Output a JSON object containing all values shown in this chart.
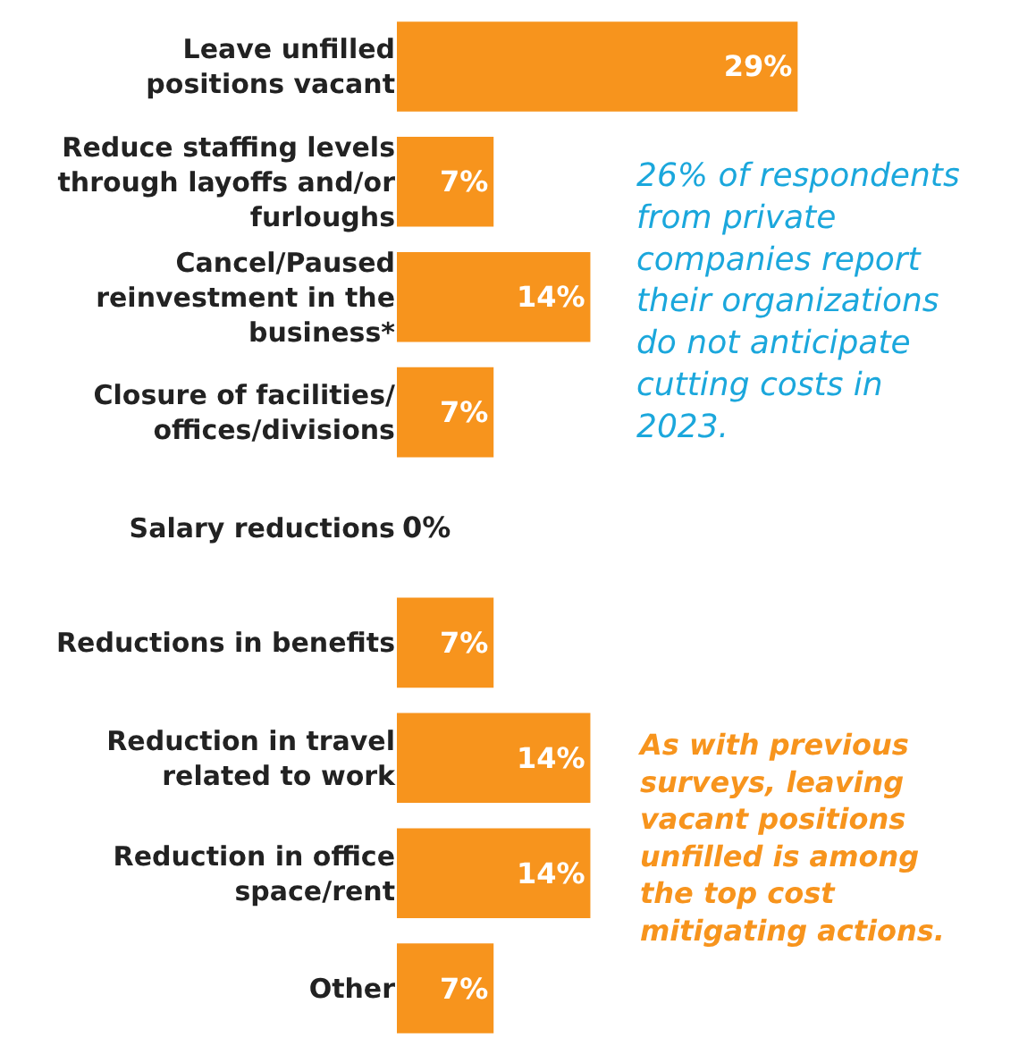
{
  "chart_data": {
    "type": "bar",
    "orientation": "horizontal",
    "categories": [
      "Leave unfilled positions vacant",
      "Reduce staffing levels through layoffs and/or furloughs",
      "Cancel/Paused reinvestment in the business*",
      "Closure of facilities/ offices/divisions",
      "Salary reductions",
      "Reductions in benefits",
      "Reduction in travel related to work",
      "Reduction in office space/rent",
      "Other"
    ],
    "values": [
      29,
      7,
      14,
      7,
      0,
      7,
      14,
      14,
      7
    ],
    "value_labels": [
      "29%",
      "7%",
      "14%",
      "7%",
      "0%",
      "7%",
      "14%",
      "14%",
      "7%"
    ],
    "color": "#f7941d",
    "tick_labels": "y",
    "grid": false,
    "annotations": [
      "26% of respondents from private companies report their organizations do not anticipate cutting costs in 2023.",
      "As with previous surveys, leaving vacant positions unfilled is among the top cost mitigating actions."
    ]
  }
}
